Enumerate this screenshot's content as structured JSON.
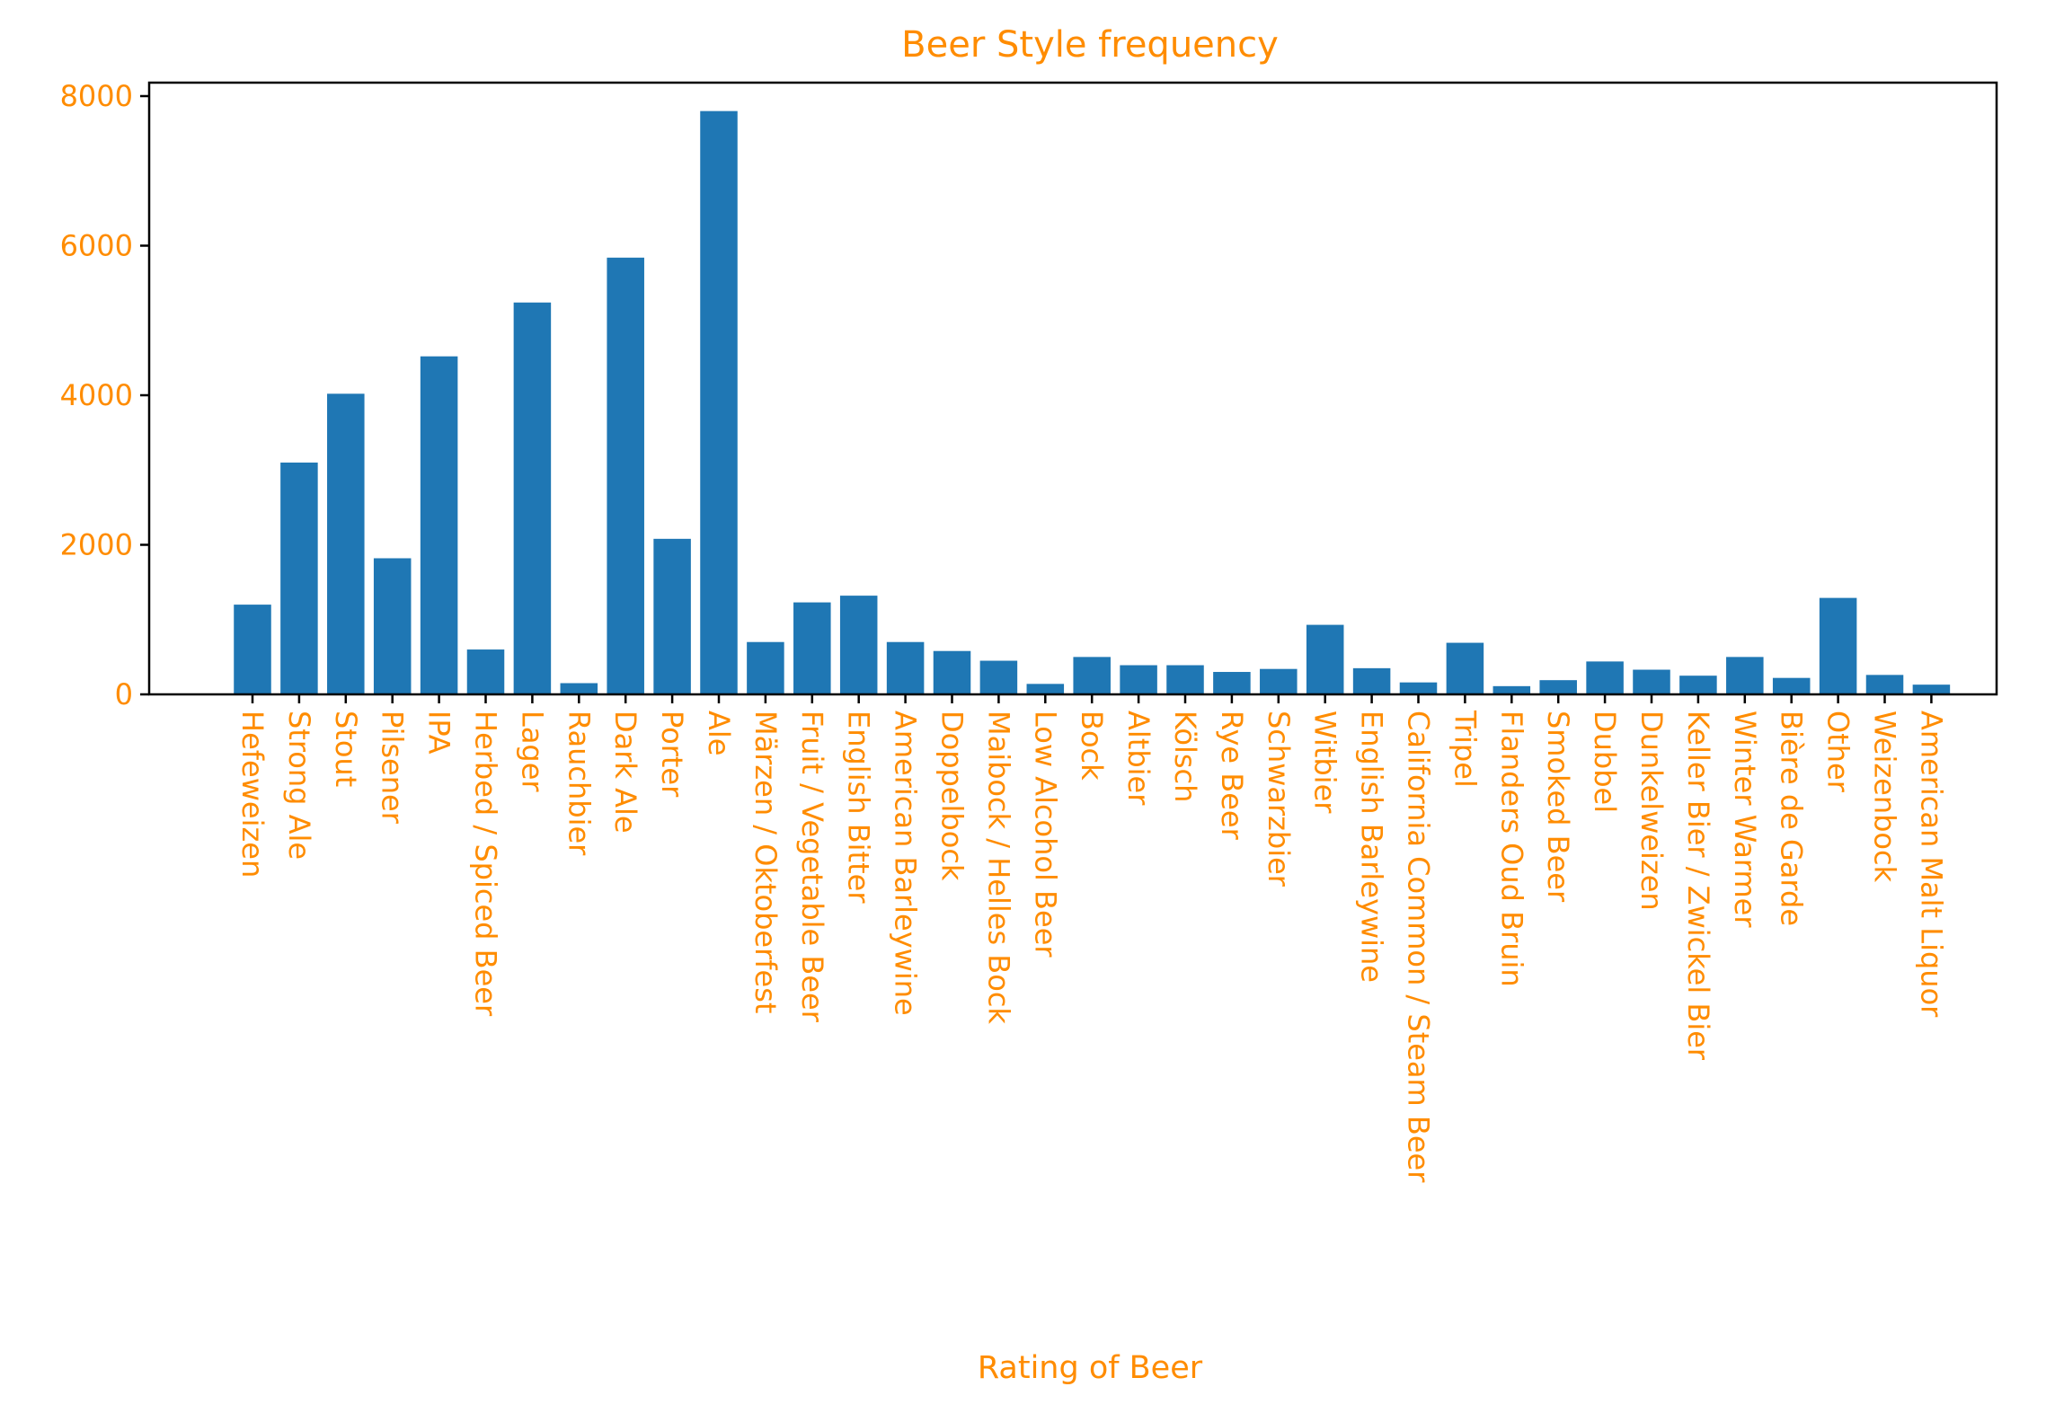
{
  "colors": {
    "bar": "#1f77b4",
    "text": "#ff8c00",
    "axis": "#000000",
    "background": "#ffffff"
  },
  "chart_data": {
    "type": "bar",
    "title": "Beer Style frequency",
    "xlabel": "Rating of Beer",
    "ylabel": "",
    "ylim": [
      0,
      8180
    ],
    "yticks": [
      0,
      2000,
      4000,
      6000,
      8000
    ],
    "grid": false,
    "categories": [
      "Hefeweizen",
      "Strong Ale",
      "Stout",
      "Pilsener",
      "IPA",
      "Herbed / Spiced Beer",
      "Lager",
      "Rauchbier",
      "Dark Ale",
      "Porter",
      "Ale",
      "Märzen / Oktoberfest",
      "Fruit / Vegetable Beer",
      "English Bitter",
      "American Barleywine",
      "Doppelbock",
      "Maibock / Helles Bock",
      "Low Alcohol Beer",
      "Bock",
      "Altbier",
      "Kölsch",
      "Rye Beer",
      "Schwarzbier",
      "Witbier",
      "English Barleywine",
      "California Common / Steam Beer",
      "Tripel",
      "Flanders Oud Bruin",
      "Smoked Beer",
      "Dubbel",
      "Dunkelweizen",
      "Keller Bier / Zwickel Bier",
      "Winter Warmer",
      "Bière de Garde",
      "Other",
      "Weizenbock",
      "American Malt Liquor"
    ],
    "values": [
      1200,
      3100,
      4020,
      1820,
      4520,
      600,
      5240,
      150,
      5840,
      2080,
      7800,
      700,
      1230,
      1320,
      700,
      580,
      450,
      140,
      500,
      390,
      390,
      300,
      340,
      930,
      350,
      160,
      690,
      110,
      190,
      440,
      330,
      250,
      500,
      220,
      1290,
      260,
      130
    ]
  }
}
